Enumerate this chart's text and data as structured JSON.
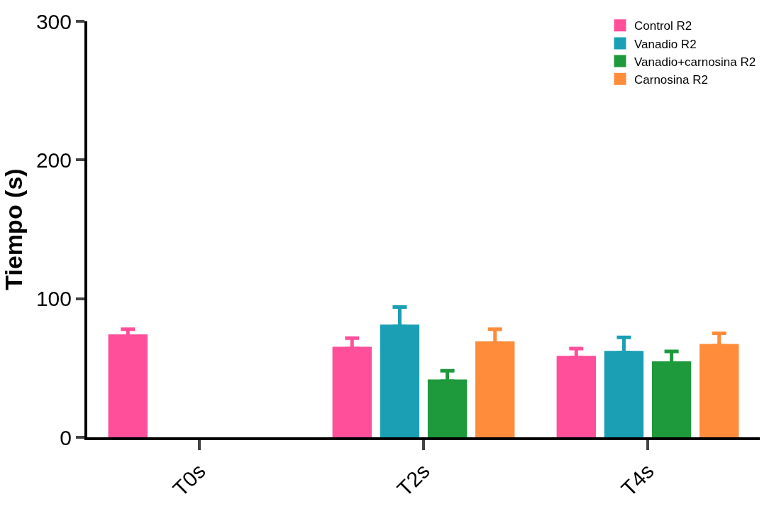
{
  "chart_data": {
    "type": "bar",
    "ylabel": "Tiempo (s)",
    "categories": [
      "T0s",
      "T2s",
      "T4s"
    ],
    "series": [
      {
        "name": "Control R2",
        "color": "#ff4f9a",
        "values": [
          73,
          64,
          57.5
        ],
        "errors": [
          [
            73,
            78
          ],
          [
            64,
            71.5
          ],
          [
            57.5,
            64
          ]
        ]
      },
      {
        "name": "Vanadio R2",
        "color": "#1a9fb5",
        "values": [
          null,
          80,
          61
        ],
        "errors": [
          null,
          [
            80,
            94
          ],
          [
            61,
            72
          ]
        ]
      },
      {
        "name": "Vanadio+carnosina R2",
        "color": "#1e9a3c",
        "values": [
          null,
          40.5,
          53.5
        ],
        "errors": [
          null,
          [
            40.5,
            48
          ],
          [
            53.5,
            62
          ]
        ]
      },
      {
        "name": "Carnosina R2",
        "color": "#ff8c3a",
        "values": [
          null,
          68,
          66
        ],
        "errors": [
          null,
          [
            68,
            78
          ],
          [
            66,
            75
          ]
        ]
      }
    ],
    "ylim": [
      0,
      300
    ],
    "yticks": [
      0,
      100,
      200,
      300
    ],
    "legend": "top right"
  }
}
